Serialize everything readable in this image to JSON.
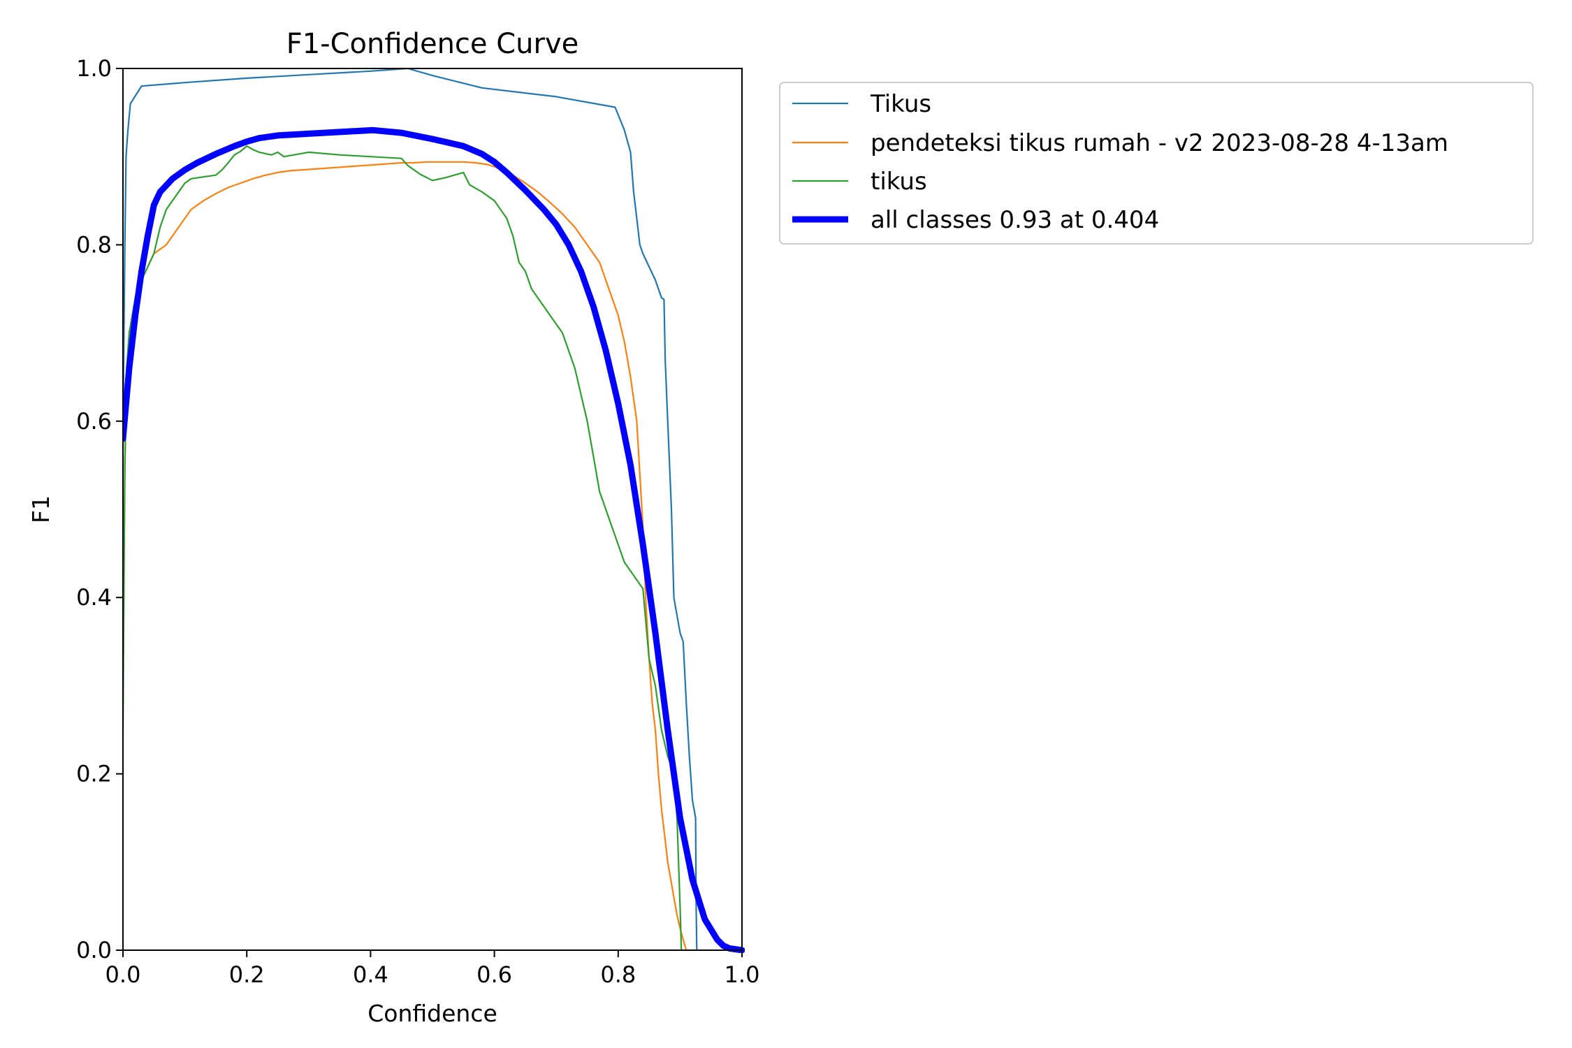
{
  "chart_data": {
    "type": "line",
    "title": "F1-Confidence Curve",
    "xlabel": "Confidence",
    "ylabel": "F1",
    "xlim": [
      0,
      1
    ],
    "ylim": [
      0,
      1
    ],
    "xticks": [
      "0.0",
      "0.2",
      "0.4",
      "0.6",
      "0.8",
      "1.0"
    ],
    "yticks": [
      "0.0",
      "0.2",
      "0.4",
      "0.6",
      "0.8",
      "1.0"
    ],
    "grid": false,
    "legend_position": "outside-top-right",
    "series": [
      {
        "name": "Tikus",
        "color": "#1f77b4",
        "x": [
          0,
          0.003,
          0.005,
          0.008,
          0.012,
          0.03,
          0.1,
          0.2,
          0.3,
          0.4,
          0.46,
          0.5,
          0.58,
          0.7,
          0.795,
          0.81,
          0.82,
          0.825,
          0.83,
          0.835,
          0.84,
          0.86,
          0.87,
          0.874,
          0.876,
          0.88,
          0.886,
          0.89,
          0.9,
          0.905,
          0.91,
          0.915,
          0.92,
          0.925,
          0.926,
          0.927
        ],
        "y": [
          0.58,
          0.8,
          0.9,
          0.93,
          0.96,
          0.98,
          0.984,
          0.989,
          0.993,
          0.997,
          1.0,
          0.992,
          0.978,
          0.968,
          0.956,
          0.93,
          0.905,
          0.86,
          0.83,
          0.8,
          0.79,
          0.76,
          0.74,
          0.738,
          0.67,
          0.6,
          0.5,
          0.4,
          0.36,
          0.35,
          0.28,
          0.22,
          0.17,
          0.15,
          0.05,
          0.0
        ]
      },
      {
        "name": "pendeteksi tikus rumah - v2 2023-08-28 4-13am",
        "color": "#ff7f0e",
        "x": [
          0,
          0.003,
          0.006,
          0.01,
          0.02,
          0.03,
          0.05,
          0.07,
          0.09,
          0.11,
          0.13,
          0.15,
          0.17,
          0.19,
          0.21,
          0.23,
          0.25,
          0.27,
          0.29,
          0.31,
          0.33,
          0.35,
          0.37,
          0.39,
          0.41,
          0.43,
          0.45,
          0.47,
          0.49,
          0.51,
          0.53,
          0.55,
          0.57,
          0.59,
          0.61,
          0.63,
          0.65,
          0.67,
          0.69,
          0.71,
          0.73,
          0.75,
          0.77,
          0.79,
          0.8,
          0.81,
          0.82,
          0.83,
          0.84,
          0.845,
          0.85,
          0.855,
          0.86,
          0.865,
          0.87,
          0.875,
          0.88,
          0.885,
          0.89,
          0.895,
          0.9,
          0.905,
          0.91
        ],
        "y": [
          0.3,
          0.55,
          0.65,
          0.7,
          0.74,
          0.76,
          0.79,
          0.8,
          0.82,
          0.84,
          0.85,
          0.858,
          0.865,
          0.87,
          0.875,
          0.879,
          0.882,
          0.884,
          0.885,
          0.886,
          0.887,
          0.888,
          0.889,
          0.89,
          0.891,
          0.892,
          0.893,
          0.893,
          0.894,
          0.894,
          0.894,
          0.894,
          0.893,
          0.891,
          0.886,
          0.879,
          0.87,
          0.86,
          0.848,
          0.835,
          0.82,
          0.8,
          0.78,
          0.74,
          0.72,
          0.69,
          0.65,
          0.6,
          0.48,
          0.39,
          0.33,
          0.28,
          0.25,
          0.2,
          0.16,
          0.13,
          0.1,
          0.08,
          0.06,
          0.04,
          0.025,
          0.012,
          0.0
        ]
      },
      {
        "name": "tikus",
        "color": "#2ca02c",
        "x": [
          0,
          0.003,
          0.006,
          0.01,
          0.015,
          0.02,
          0.03,
          0.05,
          0.06,
          0.07,
          0.08,
          0.09,
          0.1,
          0.11,
          0.13,
          0.15,
          0.16,
          0.17,
          0.18,
          0.19,
          0.2,
          0.21,
          0.22,
          0.24,
          0.25,
          0.26,
          0.3,
          0.35,
          0.4,
          0.45,
          0.46,
          0.48,
          0.5,
          0.52,
          0.54,
          0.55,
          0.56,
          0.58,
          0.6,
          0.62,
          0.63,
          0.64,
          0.65,
          0.66,
          0.67,
          0.68,
          0.69,
          0.7,
          0.71,
          0.72,
          0.73,
          0.74,
          0.75,
          0.76,
          0.77,
          0.78,
          0.785,
          0.79,
          0.8,
          0.81,
          0.82,
          0.83,
          0.84,
          0.85,
          0.86,
          0.87,
          0.88,
          0.89,
          0.895,
          0.9,
          0.902
        ],
        "y": [
          0.25,
          0.55,
          0.66,
          0.7,
          0.72,
          0.74,
          0.76,
          0.79,
          0.82,
          0.84,
          0.85,
          0.86,
          0.87,
          0.875,
          0.877,
          0.879,
          0.885,
          0.893,
          0.902,
          0.906,
          0.912,
          0.908,
          0.905,
          0.902,
          0.905,
          0.9,
          0.905,
          0.902,
          0.9,
          0.898,
          0.89,
          0.88,
          0.873,
          0.876,
          0.88,
          0.882,
          0.868,
          0.86,
          0.85,
          0.83,
          0.81,
          0.78,
          0.77,
          0.75,
          0.74,
          0.73,
          0.72,
          0.71,
          0.7,
          0.68,
          0.66,
          0.63,
          0.6,
          0.56,
          0.52,
          0.5,
          0.49,
          0.48,
          0.46,
          0.44,
          0.43,
          0.42,
          0.41,
          0.33,
          0.3,
          0.25,
          0.22,
          0.2,
          0.15,
          0.05,
          0.0
        ]
      },
      {
        "name": "all classes 0.93 at 0.404",
        "color": "#0000ff",
        "x": [
          0,
          0.01,
          0.02,
          0.03,
          0.04,
          0.05,
          0.06,
          0.08,
          0.1,
          0.12,
          0.15,
          0.18,
          0.2,
          0.22,
          0.25,
          0.3,
          0.35,
          0.404,
          0.45,
          0.5,
          0.55,
          0.58,
          0.6,
          0.62,
          0.65,
          0.68,
          0.7,
          0.72,
          0.74,
          0.76,
          0.78,
          0.8,
          0.82,
          0.84,
          0.86,
          0.88,
          0.9,
          0.92,
          0.94,
          0.96,
          0.97,
          0.98,
          1.0
        ],
        "y": [
          0.58,
          0.66,
          0.72,
          0.77,
          0.81,
          0.845,
          0.86,
          0.875,
          0.885,
          0.893,
          0.903,
          0.912,
          0.917,
          0.921,
          0.924,
          0.926,
          0.928,
          0.93,
          0.927,
          0.92,
          0.912,
          0.903,
          0.894,
          0.882,
          0.862,
          0.84,
          0.823,
          0.8,
          0.77,
          0.73,
          0.68,
          0.62,
          0.55,
          0.46,
          0.36,
          0.25,
          0.15,
          0.08,
          0.035,
          0.012,
          0.005,
          0.002,
          0.0
        ]
      }
    ]
  }
}
